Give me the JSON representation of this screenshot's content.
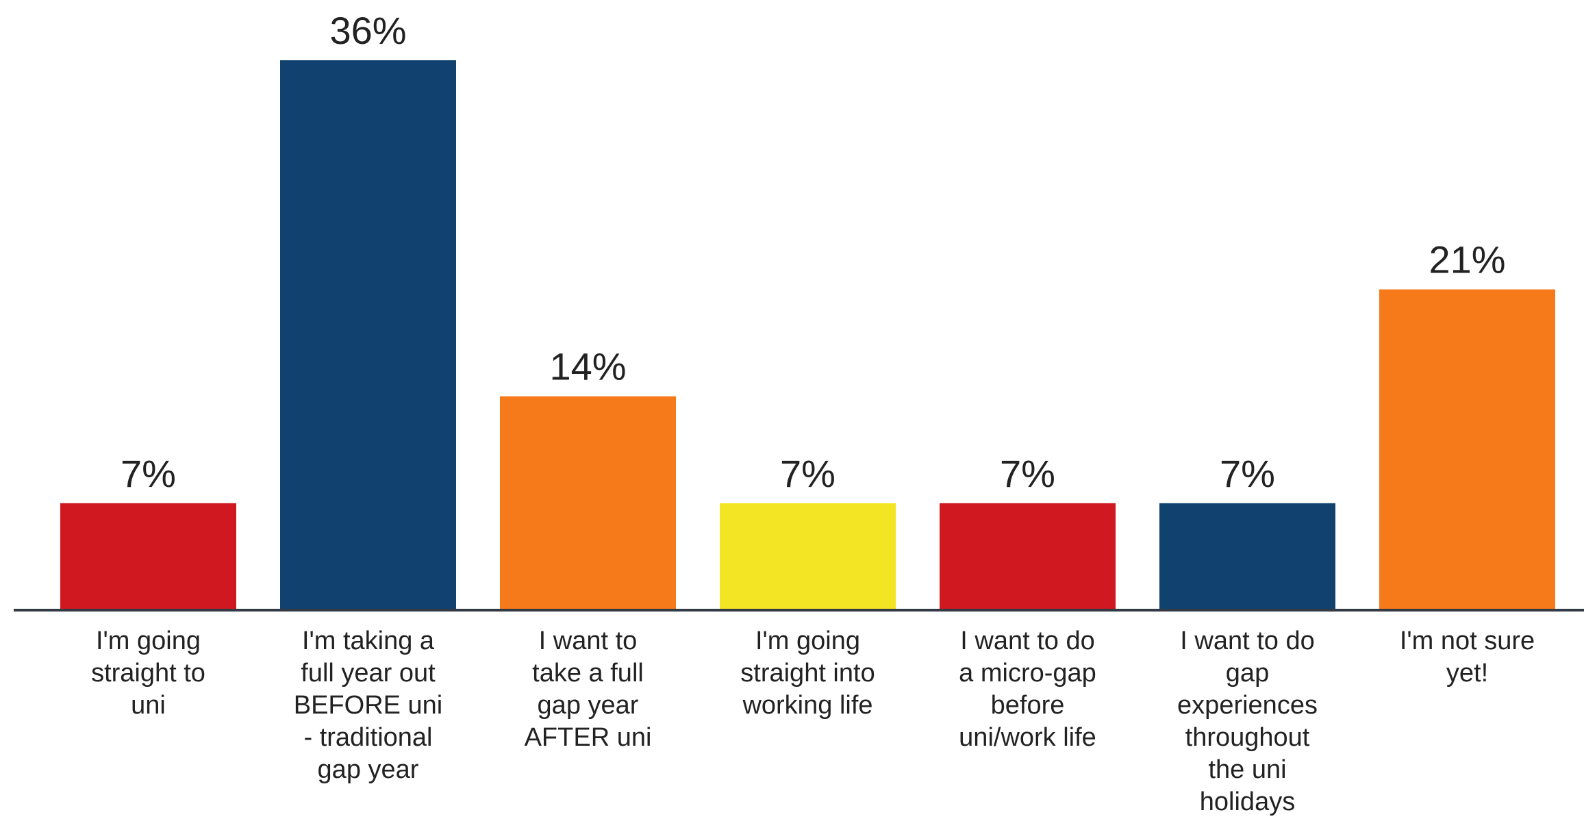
{
  "chart_data": {
    "type": "bar",
    "categories": [
      [
        "I'm going",
        "straight to",
        "uni"
      ],
      [
        "I'm taking a",
        "full year out",
        "BEFORE uni",
        "- traditional",
        "gap year"
      ],
      [
        "I want to",
        "take a full",
        "gap year",
        "AFTER uni"
      ],
      [
        "I'm going",
        "straight into",
        "working life"
      ],
      [
        "I want to do",
        "a micro-gap",
        "before",
        "uni/work life"
      ],
      [
        "I want to do",
        "gap",
        "experiences",
        "throughout",
        "the uni",
        "holidays"
      ],
      [
        "I'm not sure",
        "yet!"
      ]
    ],
    "values": [
      7,
      36,
      14,
      7,
      7,
      7,
      21
    ],
    "value_labels": [
      "7%",
      "36%",
      "14%",
      "7%",
      "7%",
      "7%",
      "21%"
    ],
    "colors": [
      "#cf1820",
      "#11426f",
      "#f77a1a",
      "#f3e524",
      "#cf1820",
      "#11426f",
      "#f77a1a"
    ],
    "axis_color": "#333a44",
    "ylim": [
      0,
      36
    ],
    "grid": false,
    "title": "",
    "xlabel": "",
    "ylabel": ""
  }
}
